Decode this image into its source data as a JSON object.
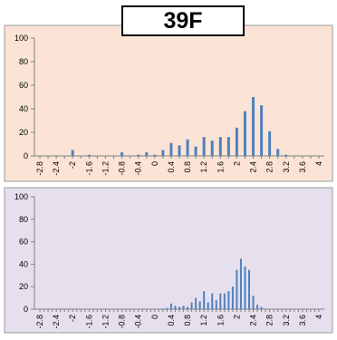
{
  "label": "39F",
  "colors": {
    "panel1_bg": "#fbe4d5",
    "panel2_bg": "#e6e0ee",
    "bar": "#4f81bd",
    "axis": "#808080",
    "text": "#000000"
  },
  "chart_data": [
    {
      "type": "bar",
      "ylim": [
        0,
        100
      ],
      "y_ticks": [
        "0",
        "20",
        "40",
        "60",
        "80",
        "100"
      ],
      "x_tick_labels": [
        "-2.8",
        "-2.4",
        "-2",
        "-1.6",
        "-1.2",
        "-0.8",
        "-0.4",
        "0",
        "0.4",
        "0.8",
        "1.2",
        "1.6",
        "2",
        "2.4",
        "2.8",
        "3.2",
        "3.6",
        "4"
      ],
      "categories": [
        "-2.8",
        "-2.6",
        "-2.4",
        "-2.2",
        "-2",
        "-1.8",
        "-1.6",
        "-1.4",
        "-1.2",
        "-1",
        "-0.8",
        "-0.6",
        "-0.4",
        "-0.2",
        "0",
        "0.2",
        "0.4",
        "0.6",
        "0.8",
        "1",
        "1.2",
        "1.4",
        "1.6",
        "1.8",
        "2",
        "2.2",
        "2.4",
        "2.6",
        "2.8",
        "3",
        "3.2",
        "3.4",
        "3.6",
        "3.8",
        "4"
      ],
      "values": [
        0,
        0,
        0,
        0,
        5,
        0,
        1,
        0,
        0,
        0,
        3,
        0,
        1,
        3,
        1,
        5,
        11,
        9,
        14,
        8,
        16,
        13,
        16,
        16,
        24,
        38,
        50,
        43,
        21,
        6,
        1,
        0,
        0,
        0,
        0
      ],
      "grid": false
    },
    {
      "type": "bar",
      "ylim": [
        0,
        100
      ],
      "y_ticks": [
        "0",
        "20",
        "40",
        "60",
        "80",
        "100"
      ],
      "x_tick_labels": [
        "-2.8",
        "-2.4",
        "-2",
        "-1.6",
        "-1.2",
        "-0.8",
        "-0.4",
        "0",
        "0.4",
        "0.8",
        "1.2",
        "1.6",
        "2",
        "2.4",
        "2.8",
        "3.2",
        "3.6",
        "4"
      ],
      "categories": [
        "-2.8",
        "-2.7",
        "-2.6",
        "-2.5",
        "-2.4",
        "-2.3",
        "-2.2",
        "-2.1",
        "-2",
        "-1.9",
        "-1.8",
        "-1.7",
        "-1.6",
        "-1.5",
        "-1.4",
        "-1.3",
        "-1.2",
        "-1.1",
        "-1",
        "-0.9",
        "-0.8",
        "-0.7",
        "-0.6",
        "-0.5",
        "-0.4",
        "-0.3",
        "-0.2",
        "-0.1",
        "0",
        "0.1",
        "0.2",
        "0.3",
        "0.4",
        "0.5",
        "0.6",
        "0.7",
        "0.8",
        "0.9",
        "1",
        "1.1",
        "1.2",
        "1.3",
        "1.4",
        "1.5",
        "1.6",
        "1.7",
        "1.8",
        "1.9",
        "2",
        "2.1",
        "2.2",
        "2.3",
        "2.4",
        "2.5",
        "2.6",
        "2.7",
        "2.8",
        "2.9",
        "3",
        "3.1",
        "3.2",
        "3.3",
        "3.4",
        "3.5",
        "3.6",
        "3.7",
        "3.8",
        "3.9",
        "4"
      ],
      "values": [
        0,
        0,
        0,
        0,
        0,
        0,
        0,
        0,
        0,
        0,
        0,
        0,
        0,
        0,
        0,
        0,
        0,
        0,
        0,
        0,
        0,
        0,
        0,
        0,
        0,
        0,
        0,
        0,
        0,
        0,
        0,
        1,
        5,
        3,
        2,
        3,
        2,
        6,
        10,
        7,
        16,
        6,
        14,
        8,
        14,
        14,
        16,
        20,
        35,
        45,
        38,
        35,
        12,
        4,
        2,
        0,
        0,
        0,
        0,
        0,
        0,
        0,
        0,
        0,
        0,
        0,
        0,
        0,
        0
      ],
      "grid": false
    }
  ]
}
